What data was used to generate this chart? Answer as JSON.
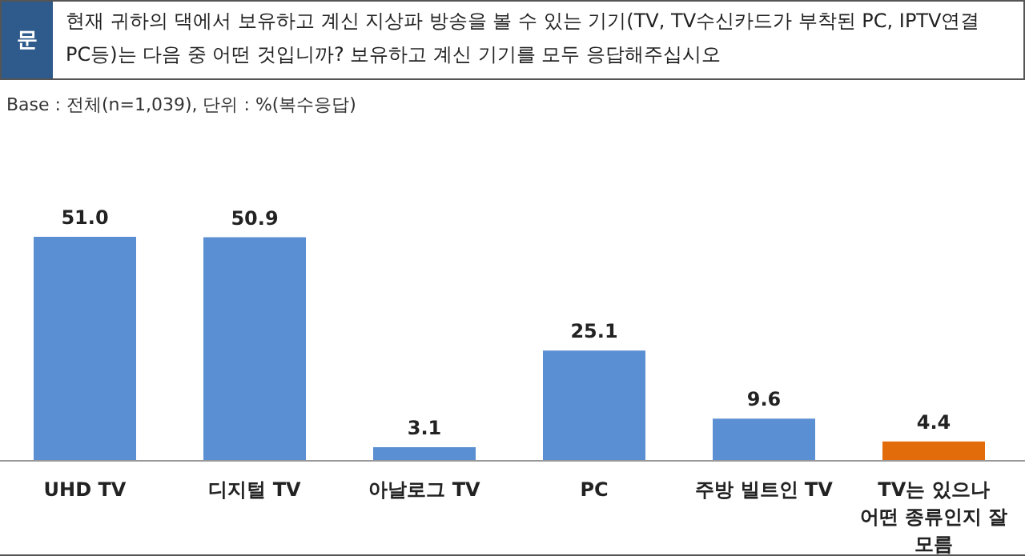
{
  "chart_data": {
    "type": "bar",
    "title": "현재 귀하의 댁에서 보유하고 계신 지상파 방송을 볼 수 있는 기기(TV, TV수신카드가 부착된 PC, IPTV연결 PC등)는 다음 중 어떤 것입니까? 보유하고 계신 기기를 모두 응답해주십시오",
    "subtitle": "Base : 전체(n=1,039), 단위 : %(복수응답)",
    "annotations": [
      "문"
    ],
    "categories": [
      "UHD TV",
      "디지털 TV",
      "아날로그 TV",
      "PC",
      "주방 빌트인 TV",
      "TV는 있으나 어떤 종류인지 잘 모름"
    ],
    "values": [
      51.0,
      50.9,
      3.1,
      25.1,
      9.6,
      4.4
    ],
    "value_labels": [
      "51.0",
      "50.9",
      "3.1",
      "25.1",
      "9.6",
      "4.4"
    ],
    "colors": [
      "#5b8fd3",
      "#5b8fd3",
      "#5b8fd3",
      "#5b8fd3",
      "#5b8fd3",
      "#e36c0a"
    ],
    "data_labels": false
  }
}
